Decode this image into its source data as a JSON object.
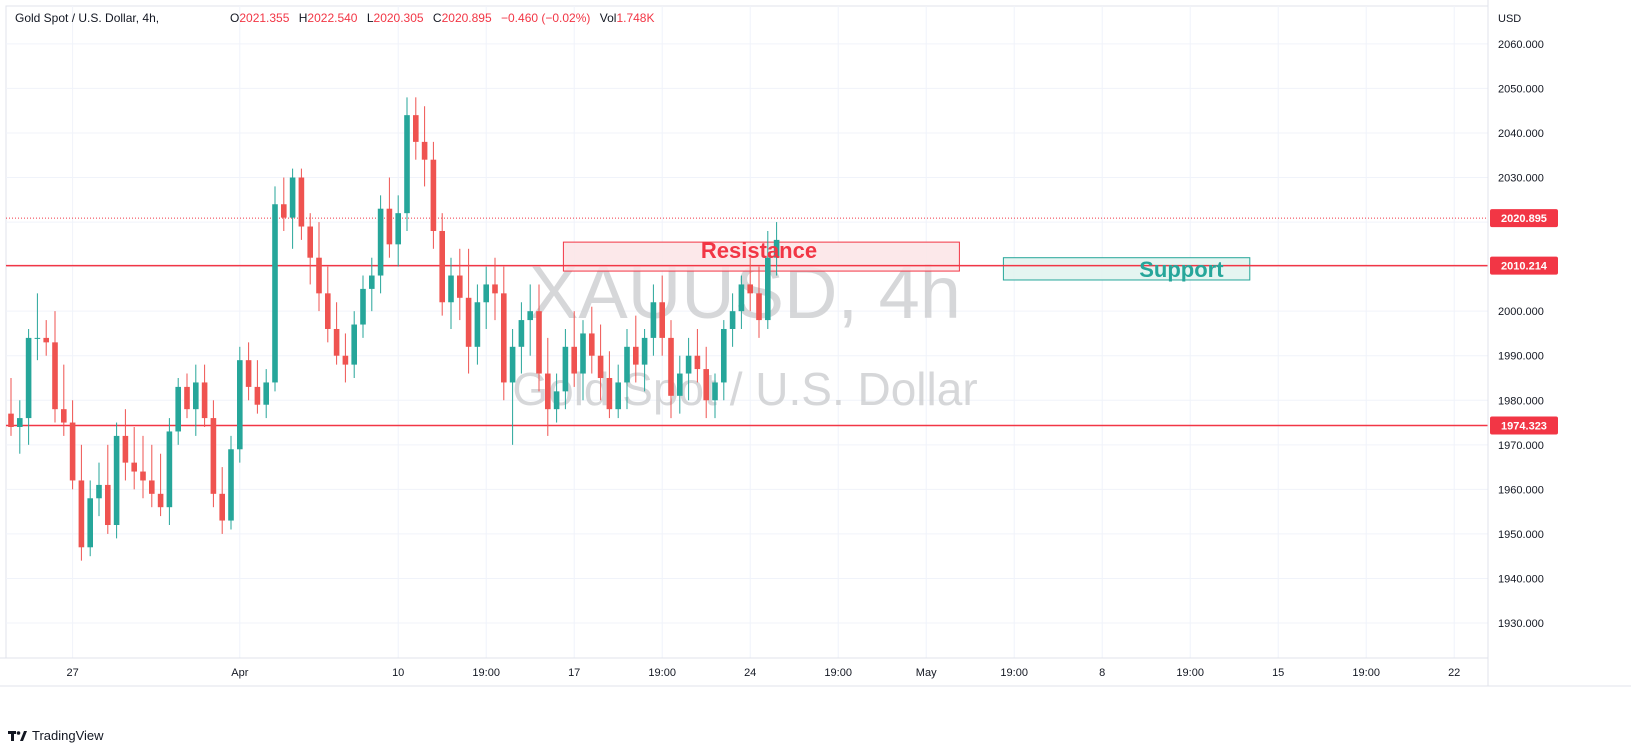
{
  "header": {
    "symbol": "Gold Spot / U.S. Dollar, 4h,",
    "o_label": "O",
    "o_value": "2021.355",
    "h_label": "H",
    "h_value": "2022.540",
    "l_label": "L",
    "l_value": "2020.305",
    "c_label": "C",
    "c_value": "2020.895",
    "change": "−0.460 (−0.02%)",
    "vol_label": "Vol",
    "vol_value": "1.748K"
  },
  "watermark": {
    "ticker": "XAUUSD, 4h",
    "name": "Gold Spot / U.S. Dollar"
  },
  "annotations": {
    "resistance": "Resistance",
    "support": "Support"
  },
  "price_axis": {
    "currency": "USD",
    "current_label": "2020.895"
  },
  "brand": {
    "name": "TradingView"
  },
  "colors": {
    "up": "#26a69a",
    "down": "#ef5350",
    "line": "#f23645",
    "resistance_fill": "#fce4e6",
    "support_fill": "#e0f3ef"
  },
  "chart_data": {
    "type": "candlestick",
    "timeframe": "4h",
    "ylim": [
      1925,
      2070
    ],
    "yticks": [
      1930,
      1940,
      1950,
      1960,
      1970,
      1980,
      1990,
      2000,
      2010,
      2020,
      2030,
      2040,
      2050,
      2060
    ],
    "ytick_labels": [
      "1930.000",
      "1940.000",
      "1950.000",
      "1960.000",
      "1970.000",
      "1980.000",
      "1990.000",
      "2000.000",
      "2010.000",
      "2020.000",
      "2030.000",
      "2040.000",
      "2050.000",
      "2060.000"
    ],
    "xticks": [
      {
        "label": "27",
        "bar": 7
      },
      {
        "label": "Apr",
        "bar": 26
      },
      {
        "label": "10",
        "bar": 44
      },
      {
        "label": "19:00",
        "bar": 54
      },
      {
        "label": "17",
        "bar": 64
      },
      {
        "label": "19:00",
        "bar": 74
      },
      {
        "label": "24",
        "bar": 84
      },
      {
        "label": "19:00",
        "bar": 94
      },
      {
        "label": "May",
        "bar": 104
      },
      {
        "label": "19:00",
        "bar": 114
      },
      {
        "label": "8",
        "bar": 124
      },
      {
        "label": "19:00",
        "bar": 134
      },
      {
        "label": "15",
        "bar": 144
      },
      {
        "label": "19:00",
        "bar": 154
      },
      {
        "label": "22",
        "bar": 164
      }
    ],
    "hlines": [
      {
        "price": 2010.214,
        "label": "2010.214"
      },
      {
        "price": 1974.323,
        "label": "1974.323"
      }
    ],
    "last_price": 2020.895,
    "zones": [
      {
        "name": "Resistance",
        "y_top": 2015.5,
        "y_bottom": 2009,
        "bar_start": 63,
        "bar_end": 108
      },
      {
        "name": "Support",
        "y_top": 2012,
        "y_bottom": 2007,
        "bar_start": 113,
        "bar_end": 141
      }
    ],
    "candles": [
      [
        1977,
        1985,
        1972,
        1974
      ],
      [
        1974,
        1980,
        1968,
        1976
      ],
      [
        1976,
        1996,
        1970,
        1994
      ],
      [
        1994,
        2004,
        1989,
        1994
      ],
      [
        1994,
        1998,
        1990,
        1993
      ],
      [
        1993,
        2000,
        1975,
        1978
      ],
      [
        1978,
        1988,
        1972,
        1975
      ],
      [
        1975,
        1980,
        1960,
        1962
      ],
      [
        1962,
        1970,
        1944,
        1947
      ],
      [
        1947,
        1962,
        1945,
        1958
      ],
      [
        1958,
        1966,
        1954,
        1961
      ],
      [
        1961,
        1970,
        1950,
        1952
      ],
      [
        1952,
        1975,
        1949,
        1972
      ],
      [
        1972,
        1978,
        1962,
        1966
      ],
      [
        1966,
        1974,
        1960,
        1964
      ],
      [
        1964,
        1972,
        1958,
        1962
      ],
      [
        1962,
        1970,
        1956,
        1959
      ],
      [
        1959,
        1968,
        1954,
        1956
      ],
      [
        1956,
        1976,
        1952,
        1973
      ],
      [
        1973,
        1985,
        1970,
        1983
      ],
      [
        1983,
        1986,
        1976,
        1978
      ],
      [
        1978,
        1988,
        1972,
        1984
      ],
      [
        1984,
        1988,
        1974,
        1976
      ],
      [
        1976,
        1980,
        1956,
        1959
      ],
      [
        1959,
        1965,
        1950,
        1953
      ],
      [
        1953,
        1972,
        1951,
        1969
      ],
      [
        1969,
        1992,
        1966,
        1989
      ],
      [
        1989,
        1993,
        1980,
        1983
      ],
      [
        1983,
        1989,
        1977,
        1979
      ],
      [
        1979,
        1987,
        1976,
        1984
      ],
      [
        1984,
        2028,
        1982,
        2024
      ],
      [
        2024,
        2030,
        2018,
        2021
      ],
      [
        2021,
        2032,
        2014,
        2030
      ],
      [
        2030,
        2032,
        2016,
        2019
      ],
      [
        2019,
        2022,
        2006,
        2012
      ],
      [
        2012,
        2020,
        2000,
        2004
      ],
      [
        2004,
        2010,
        1993,
        1996
      ],
      [
        1996,
        2002,
        1988,
        1990
      ],
      [
        1990,
        1995,
        1984,
        1988
      ],
      [
        1988,
        2000,
        1985,
        1997
      ],
      [
        1997,
        2008,
        1994,
        2005
      ],
      [
        2005,
        2012,
        2000,
        2008
      ],
      [
        2008,
        2026,
        2004,
        2023
      ],
      [
        2023,
        2030,
        2012,
        2015
      ],
      [
        2015,
        2026,
        2010,
        2022
      ],
      [
        2022,
        2048,
        2018,
        2044
      ],
      [
        2044,
        2048,
        2034,
        2038
      ],
      [
        2038,
        2046,
        2028,
        2034
      ],
      [
        2034,
        2038,
        2014,
        2018
      ],
      [
        2018,
        2022,
        1999,
        2002
      ],
      [
        2002,
        2012,
        1996,
        2008
      ],
      [
        2008,
        2014,
        1998,
        2003
      ],
      [
        2003,
        2014,
        1986,
        1992
      ],
      [
        1992,
        2006,
        1988,
        2002
      ],
      [
        2002,
        2010,
        1996,
        2006
      ],
      [
        2006,
        2012,
        1998,
        2004
      ],
      [
        2004,
        2010,
        1980,
        1984
      ],
      [
        1984,
        1996,
        1970,
        1992
      ],
      [
        1992,
        2002,
        1986,
        1998
      ],
      [
        1998,
        2006,
        1990,
        2000
      ],
      [
        2000,
        2006,
        1982,
        1986
      ],
      [
        1986,
        1994,
        1972,
        1978
      ],
      [
        1978,
        1986,
        1975,
        1982
      ],
      [
        1982,
        1996,
        1978,
        1992
      ],
      [
        1992,
        2000,
        1983,
        1986
      ],
      [
        1986,
        1998,
        1980,
        1995
      ],
      [
        1995,
        2001,
        1986,
        1990
      ],
      [
        1990,
        1997,
        1980,
        1985
      ],
      [
        1985,
        1991,
        1976,
        1978
      ],
      [
        1978,
        1988,
        1976,
        1984
      ],
      [
        1984,
        1996,
        1978,
        1992
      ],
      [
        1992,
        1999,
        1984,
        1988
      ],
      [
        1988,
        1996,
        1982,
        1994
      ],
      [
        1994,
        2006,
        1990,
        2002
      ],
      [
        2002,
        2008,
        1990,
        1994
      ],
      [
        1994,
        1998,
        1976,
        1981
      ],
      [
        1981,
        1990,
        1977,
        1986
      ],
      [
        1986,
        1994,
        1980,
        1990
      ],
      [
        1990,
        1996,
        1984,
        1987
      ],
      [
        1987,
        1992,
        1976,
        1980
      ],
      [
        1980,
        1986,
        1976,
        1984
      ],
      [
        1984,
        1998,
        1980,
        1996
      ],
      [
        1996,
        2004,
        1992,
        2000
      ],
      [
        2000,
        2008,
        1996,
        2006
      ],
      [
        2006,
        2012,
        2000,
        2004
      ],
      [
        2004,
        2010,
        1994,
        1998
      ],
      [
        1998,
        2018,
        1996,
        2012
      ],
      [
        2012,
        2020,
        2008,
        2016
      ]
    ]
  }
}
